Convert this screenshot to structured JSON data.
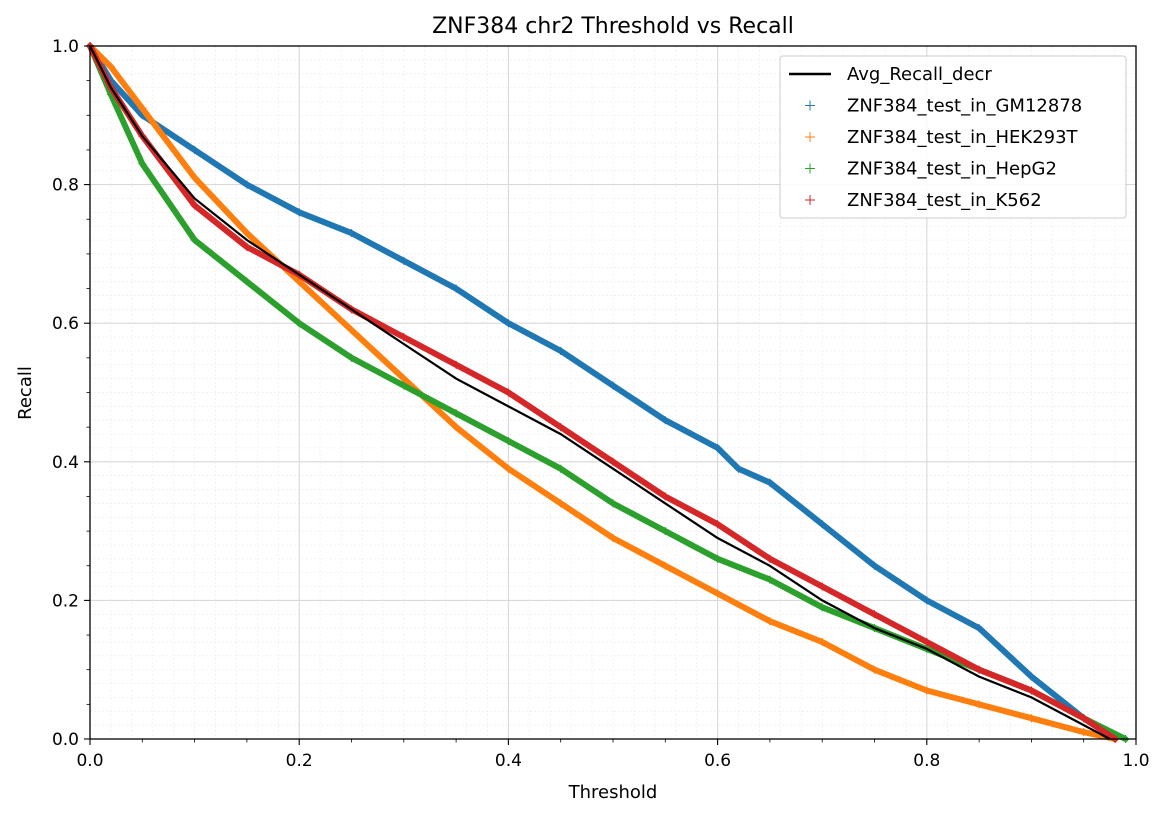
{
  "chart_data": {
    "type": "scatter",
    "title": "ZNF384 chr2 Threshold vs Recall",
    "xlabel": "Threshold",
    "ylabel": "Recall",
    "xlim": [
      0,
      1
    ],
    "ylim": [
      0,
      1
    ],
    "x_ticks": [
      "0.0",
      "0.2",
      "0.4",
      "0.6",
      "0.8",
      "1.0"
    ],
    "y_ticks": [
      "0.0",
      "0.2",
      "0.4",
      "0.6",
      "0.8",
      "1.0"
    ],
    "grid": true,
    "legend_position": "top-right",
    "series": [
      {
        "name": "Avg_Recall_decr",
        "style": "line",
        "color": "#000000",
        "x": [
          0,
          0.02,
          0.05,
          0.1,
          0.15,
          0.2,
          0.25,
          0.3,
          0.35,
          0.4,
          0.45,
          0.5,
          0.55,
          0.6,
          0.65,
          0.7,
          0.75,
          0.8,
          0.85,
          0.9,
          0.95,
          0.975
        ],
        "y": [
          1.0,
          0.94,
          0.87,
          0.78,
          0.72,
          0.67,
          0.62,
          0.57,
          0.52,
          0.48,
          0.44,
          0.39,
          0.34,
          0.29,
          0.25,
          0.2,
          0.16,
          0.13,
          0.09,
          0.06,
          0.02,
          0.0
        ]
      },
      {
        "name": "ZNF384_test_in_GM12878",
        "style": "marker",
        "color": "#1f77b4",
        "x": [
          0,
          0.02,
          0.05,
          0.1,
          0.15,
          0.2,
          0.25,
          0.3,
          0.35,
          0.4,
          0.45,
          0.5,
          0.55,
          0.6,
          0.62,
          0.65,
          0.7,
          0.75,
          0.8,
          0.85,
          0.9,
          0.95,
          0.98
        ],
        "y": [
          1.0,
          0.95,
          0.9,
          0.85,
          0.8,
          0.76,
          0.73,
          0.69,
          0.65,
          0.6,
          0.56,
          0.51,
          0.46,
          0.42,
          0.39,
          0.37,
          0.31,
          0.25,
          0.2,
          0.16,
          0.09,
          0.03,
          0.0
        ]
      },
      {
        "name": "ZNF384_test_in_HEK293T",
        "style": "marker",
        "color": "#ff7f0e",
        "x": [
          0,
          0.02,
          0.05,
          0.1,
          0.15,
          0.2,
          0.25,
          0.3,
          0.35,
          0.4,
          0.45,
          0.5,
          0.55,
          0.6,
          0.65,
          0.7,
          0.75,
          0.8,
          0.85,
          0.9,
          0.95,
          0.98
        ],
        "y": [
          1.0,
          0.97,
          0.91,
          0.81,
          0.73,
          0.66,
          0.59,
          0.52,
          0.45,
          0.39,
          0.34,
          0.29,
          0.25,
          0.21,
          0.17,
          0.14,
          0.1,
          0.07,
          0.05,
          0.03,
          0.01,
          0.0
        ]
      },
      {
        "name": "ZNF384_test_in_HepG2",
        "style": "marker",
        "color": "#2ca02c",
        "x": [
          0,
          0.02,
          0.05,
          0.1,
          0.15,
          0.2,
          0.25,
          0.3,
          0.35,
          0.4,
          0.45,
          0.5,
          0.55,
          0.6,
          0.65,
          0.7,
          0.75,
          0.8,
          0.85,
          0.9,
          0.95,
          0.99
        ],
        "y": [
          1.0,
          0.93,
          0.83,
          0.72,
          0.66,
          0.6,
          0.55,
          0.51,
          0.47,
          0.43,
          0.39,
          0.34,
          0.3,
          0.26,
          0.23,
          0.19,
          0.16,
          0.13,
          0.1,
          0.07,
          0.03,
          0.0
        ]
      },
      {
        "name": "ZNF384_test_in_K562",
        "style": "marker",
        "color": "#d62728",
        "x": [
          0,
          0.02,
          0.05,
          0.1,
          0.15,
          0.2,
          0.25,
          0.3,
          0.35,
          0.4,
          0.45,
          0.5,
          0.55,
          0.6,
          0.65,
          0.7,
          0.75,
          0.8,
          0.85,
          0.9,
          0.95,
          0.98
        ],
        "y": [
          1.0,
          0.94,
          0.87,
          0.77,
          0.71,
          0.67,
          0.62,
          0.58,
          0.54,
          0.5,
          0.45,
          0.4,
          0.35,
          0.31,
          0.26,
          0.22,
          0.18,
          0.14,
          0.1,
          0.07,
          0.03,
          0.0
        ]
      }
    ]
  }
}
